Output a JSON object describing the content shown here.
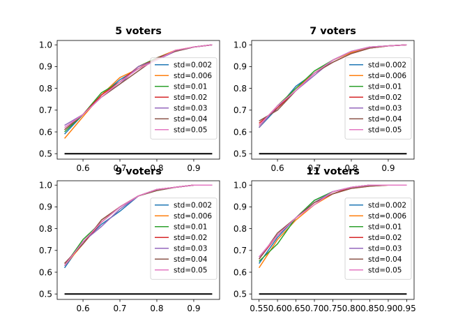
{
  "chart_data": [
    {
      "type": "line",
      "title": "5 voters",
      "xlabel": "",
      "ylabel": "",
      "xlim": [
        0.53,
        0.97
      ],
      "ylim": [
        0.475,
        1.02
      ],
      "xticks": [
        0.6,
        0.7,
        0.8,
        0.9
      ],
      "xtick_labels": [
        "0.6",
        "0.7",
        "0.8",
        "0.9"
      ],
      "yticks": [
        0.5,
        0.6,
        0.7,
        0.8,
        0.9,
        1.0
      ],
      "ytick_labels": [
        "0.5",
        "0.6",
        "0.7",
        "0.8",
        "0.9",
        "1.0"
      ],
      "legend_position": "center right",
      "x": [
        0.55,
        0.6,
        0.65,
        0.7,
        0.75,
        0.8,
        0.85,
        0.9,
        0.95
      ],
      "baseline": {
        "value": 0.5,
        "color": "#000000"
      },
      "series": [
        {
          "name": "std=0.002",
          "color": "#1f77b4",
          "values": [
            0.59,
            0.68,
            0.77,
            0.84,
            0.89,
            0.94,
            0.97,
            0.99,
            1.0
          ]
        },
        {
          "name": "std=0.006",
          "color": "#ff7f0e",
          "values": [
            0.57,
            0.67,
            0.77,
            0.85,
            0.89,
            0.94,
            0.975,
            0.99,
            1.0
          ]
        },
        {
          "name": "std=0.01",
          "color": "#2ca02c",
          "values": [
            0.6,
            0.68,
            0.78,
            0.83,
            0.9,
            0.94,
            0.97,
            0.99,
            1.0
          ]
        },
        {
          "name": "std=0.02",
          "color": "#d62728",
          "values": [
            0.61,
            0.68,
            0.77,
            0.83,
            0.9,
            0.935,
            0.97,
            0.99,
            1.0
          ]
        },
        {
          "name": "std=0.03",
          "color": "#9467bd",
          "values": [
            0.63,
            0.68,
            0.76,
            0.82,
            0.9,
            0.93,
            0.97,
            0.99,
            1.0
          ]
        },
        {
          "name": "std=0.04",
          "color": "#8c564b",
          "values": [
            0.61,
            0.68,
            0.76,
            0.82,
            0.88,
            0.94,
            0.97,
            0.99,
            1.0
          ]
        },
        {
          "name": "std=0.05",
          "color": "#e377c2",
          "values": [
            0.62,
            0.68,
            0.76,
            0.83,
            0.89,
            0.93,
            0.975,
            0.99,
            1.0
          ]
        }
      ]
    },
    {
      "type": "line",
      "title": "7 voters",
      "xlabel": "",
      "ylabel": "",
      "xlim": [
        0.53,
        0.97
      ],
      "ylim": [
        0.475,
        1.02
      ],
      "xticks": [
        0.6,
        0.7,
        0.8,
        0.9
      ],
      "xtick_labels": [
        "0.6",
        "0.7",
        "0.8",
        "0.9"
      ],
      "yticks": [
        0.5,
        0.6,
        0.7,
        0.8,
        0.9,
        1.0
      ],
      "ytick_labels": [
        "0.5",
        "0.6",
        "0.7",
        "0.8",
        "0.9",
        "1.0"
      ],
      "legend_position": "center right",
      "x": [
        0.55,
        0.6,
        0.65,
        0.7,
        0.75,
        0.8,
        0.85,
        0.9,
        0.95
      ],
      "baseline": {
        "value": 0.5,
        "color": "#000000"
      },
      "series": [
        {
          "name": "std=0.002",
          "color": "#1f77b4",
          "values": [
            0.62,
            0.71,
            0.81,
            0.87,
            0.93,
            0.97,
            0.99,
            0.995,
            1.0
          ]
        },
        {
          "name": "std=0.006",
          "color": "#ff7f0e",
          "values": [
            0.63,
            0.72,
            0.8,
            0.87,
            0.93,
            0.965,
            0.985,
            0.995,
            1.0
          ]
        },
        {
          "name": "std=0.01",
          "color": "#2ca02c",
          "values": [
            0.62,
            0.72,
            0.8,
            0.88,
            0.93,
            0.97,
            0.99,
            0.995,
            1.0
          ]
        },
        {
          "name": "std=0.02",
          "color": "#d62728",
          "values": [
            0.64,
            0.71,
            0.79,
            0.87,
            0.92,
            0.96,
            0.985,
            0.995,
            1.0
          ]
        },
        {
          "name": "std=0.03",
          "color": "#9467bd",
          "values": [
            0.62,
            0.72,
            0.79,
            0.86,
            0.93,
            0.97,
            0.99,
            0.995,
            1.0
          ]
        },
        {
          "name": "std=0.04",
          "color": "#8c564b",
          "values": [
            0.65,
            0.7,
            0.79,
            0.87,
            0.92,
            0.96,
            0.985,
            0.995,
            1.0
          ]
        },
        {
          "name": "std=0.05",
          "color": "#e377c2",
          "values": [
            0.63,
            0.72,
            0.79,
            0.87,
            0.93,
            0.97,
            0.99,
            0.995,
            1.0
          ]
        }
      ]
    },
    {
      "type": "line",
      "title": "9 voters",
      "xlabel": "",
      "ylabel": "",
      "xlim": [
        0.53,
        0.97
      ],
      "ylim": [
        0.475,
        1.02
      ],
      "xticks": [
        0.6,
        0.7,
        0.8,
        0.9
      ],
      "xtick_labels": [
        "0.6",
        "0.7",
        "0.8",
        "0.9"
      ],
      "yticks": [
        0.5,
        0.6,
        0.7,
        0.8,
        0.9,
        1.0
      ],
      "ytick_labels": [
        "0.5",
        "0.6",
        "0.7",
        "0.8",
        "0.9",
        "1.0"
      ],
      "legend_position": "center right",
      "x": [
        0.55,
        0.6,
        0.65,
        0.7,
        0.75,
        0.8,
        0.85,
        0.9,
        0.95
      ],
      "baseline": {
        "value": 0.5,
        "color": "#000000"
      },
      "series": [
        {
          "name": "std=0.002",
          "color": "#1f77b4",
          "values": [
            0.62,
            0.74,
            0.82,
            0.88,
            0.95,
            0.98,
            0.99,
            1.0,
            1.0
          ]
        },
        {
          "name": "std=0.006",
          "color": "#ff7f0e",
          "values": [
            0.63,
            0.73,
            0.84,
            0.9,
            0.95,
            0.98,
            0.99,
            1.0,
            1.0
          ]
        },
        {
          "name": "std=0.01",
          "color": "#2ca02c",
          "values": [
            0.63,
            0.75,
            0.83,
            0.9,
            0.95,
            0.975,
            0.99,
            1.0,
            1.0
          ]
        },
        {
          "name": "std=0.02",
          "color": "#d62728",
          "values": [
            0.64,
            0.73,
            0.83,
            0.9,
            0.95,
            0.98,
            0.99,
            1.0,
            1.0
          ]
        },
        {
          "name": "std=0.03",
          "color": "#9467bd",
          "values": [
            0.63,
            0.74,
            0.81,
            0.89,
            0.95,
            0.98,
            0.99,
            1.0,
            1.0
          ]
        },
        {
          "name": "std=0.04",
          "color": "#8c564b",
          "values": [
            0.64,
            0.73,
            0.84,
            0.9,
            0.95,
            0.975,
            0.99,
            1.0,
            1.0
          ]
        },
        {
          "name": "std=0.05",
          "color": "#e377c2",
          "values": [
            0.63,
            0.74,
            0.83,
            0.9,
            0.95,
            0.98,
            0.99,
            1.0,
            1.0
          ]
        }
      ]
    },
    {
      "type": "line",
      "title": "11 voters",
      "xlabel": "",
      "ylabel": "",
      "xlim": [
        0.53,
        0.97
      ],
      "ylim": [
        0.475,
        1.02
      ],
      "xticks": [
        0.55,
        0.6,
        0.65,
        0.7,
        0.75,
        0.8,
        0.85,
        0.9,
        0.95
      ],
      "xtick_labels": [
        "0.55",
        "0.60",
        "0.65",
        "0.70",
        "0.75",
        "0.80",
        "0.85",
        "0.90",
        "0.95"
      ],
      "yticks": [
        0.5,
        0.6,
        0.7,
        0.8,
        0.9,
        1.0
      ],
      "ytick_labels": [
        "0.5",
        "0.6",
        "0.7",
        "0.8",
        "0.9",
        "1.0"
      ],
      "legend_position": "center right",
      "x": [
        0.55,
        0.6,
        0.65,
        0.7,
        0.75,
        0.8,
        0.85,
        0.9,
        0.95
      ],
      "baseline": {
        "value": 0.5,
        "color": "#000000"
      },
      "series": [
        {
          "name": "std=0.002",
          "color": "#1f77b4",
          "values": [
            0.64,
            0.76,
            0.85,
            0.93,
            0.97,
            0.99,
            1.0,
            1.0,
            1.0
          ]
        },
        {
          "name": "std=0.006",
          "color": "#ff7f0e",
          "values": [
            0.62,
            0.75,
            0.84,
            0.91,
            0.96,
            0.985,
            0.995,
            1.0,
            1.0
          ]
        },
        {
          "name": "std=0.01",
          "color": "#2ca02c",
          "values": [
            0.65,
            0.73,
            0.85,
            0.93,
            0.97,
            0.99,
            1.0,
            1.0,
            1.0
          ]
        },
        {
          "name": "std=0.02",
          "color": "#d62728",
          "values": [
            0.66,
            0.77,
            0.85,
            0.92,
            0.96,
            0.99,
            1.0,
            1.0,
            1.0
          ]
        },
        {
          "name": "std=0.03",
          "color": "#9467bd",
          "values": [
            0.67,
            0.77,
            0.85,
            0.92,
            0.97,
            0.99,
            1.0,
            1.0,
            1.0
          ]
        },
        {
          "name": "std=0.04",
          "color": "#8c564b",
          "values": [
            0.66,
            0.78,
            0.85,
            0.92,
            0.96,
            0.985,
            0.995,
            1.0,
            1.0
          ]
        },
        {
          "name": "std=0.05",
          "color": "#e377c2",
          "values": [
            0.67,
            0.77,
            0.85,
            0.91,
            0.97,
            0.99,
            1.0,
            1.0,
            1.0
          ]
        }
      ]
    }
  ]
}
